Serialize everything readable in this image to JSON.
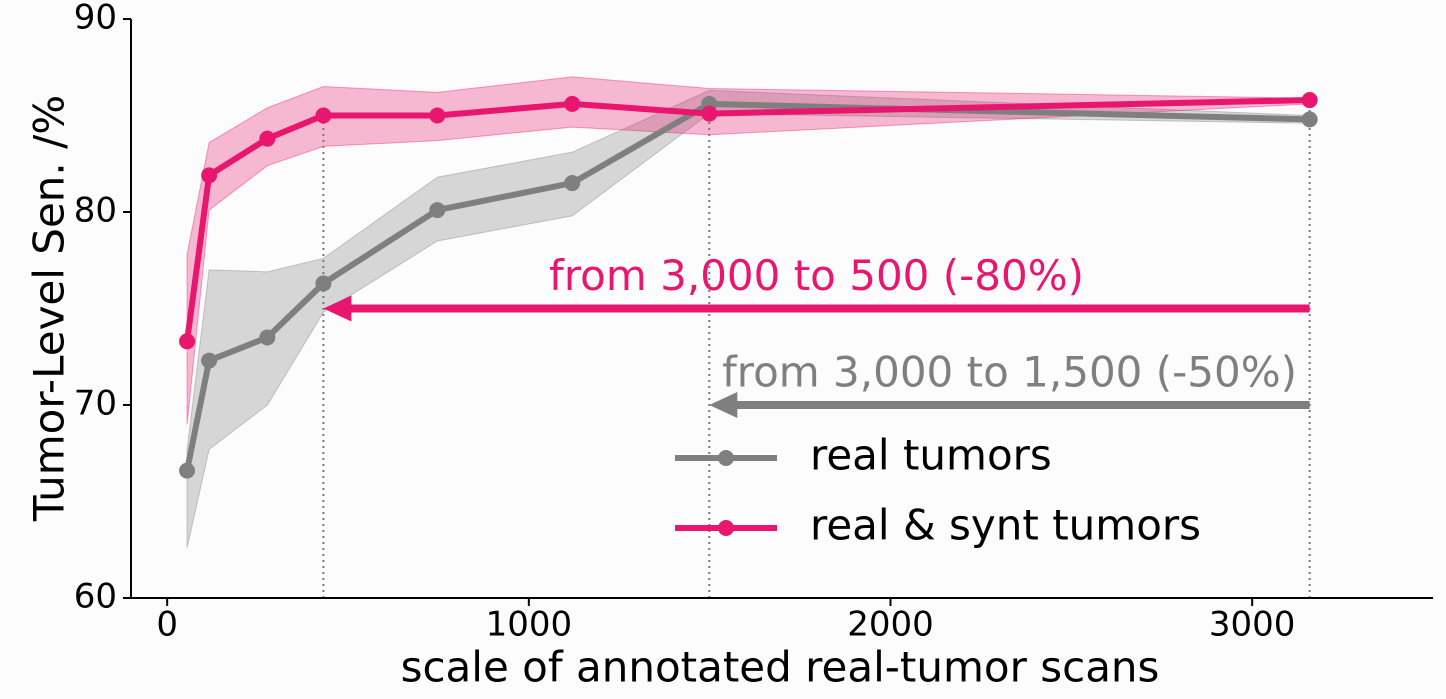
{
  "chart_data": {
    "type": "line",
    "xlabel": "scale of annotated real-tumor scans",
    "ylabel": "Tumor-Level Sen. /%",
    "x": [
      55,
      116,
      277,
      432,
      747,
      1120,
      1499,
      3159
    ],
    "series": [
      {
        "name": "real tumors",
        "color": "#7f7f7f",
        "values": [
          66.6,
          72.3,
          73.5,
          76.3,
          80.1,
          81.5,
          85.6,
          84.8
        ],
        "upper": [
          67.7,
          77.0,
          76.9,
          77.6,
          81.8,
          83.1,
          86.3,
          85.0
        ],
        "lower": [
          62.6,
          67.7,
          70.0,
          74.8,
          78.5,
          79.8,
          85.1,
          84.6
        ]
      },
      {
        "name": "real & synt tumors",
        "color": "#e8166e",
        "values": [
          73.3,
          81.9,
          83.8,
          85.0,
          85.0,
          85.6,
          85.1,
          85.8
        ],
        "upper": [
          77.8,
          83.6,
          85.4,
          86.5,
          86.2,
          87.0,
          86.4,
          85.9
        ],
        "lower": [
          69.0,
          80.1,
          82.4,
          83.4,
          83.7,
          84.4,
          84.0,
          85.6
        ]
      }
    ],
    "annotations": [
      {
        "text": "from 3,000 to 500 (-80%)",
        "color": "#e8166e",
        "x_from": 3159,
        "x_to": 432,
        "y": 75
      },
      {
        "text": "from 3,000 to 1,500 (-50%)",
        "color": "#7f7f7f",
        "x_from": 3159,
        "x_to": 1499,
        "y": 70
      }
    ],
    "xlim": [
      -100,
      3500
    ],
    "xticks": [
      0,
      1000,
      2000,
      3000
    ],
    "ylim": [
      60,
      90
    ],
    "yticks": [
      60,
      70,
      80,
      90
    ],
    "legend": "lower right",
    "grid": false
  }
}
